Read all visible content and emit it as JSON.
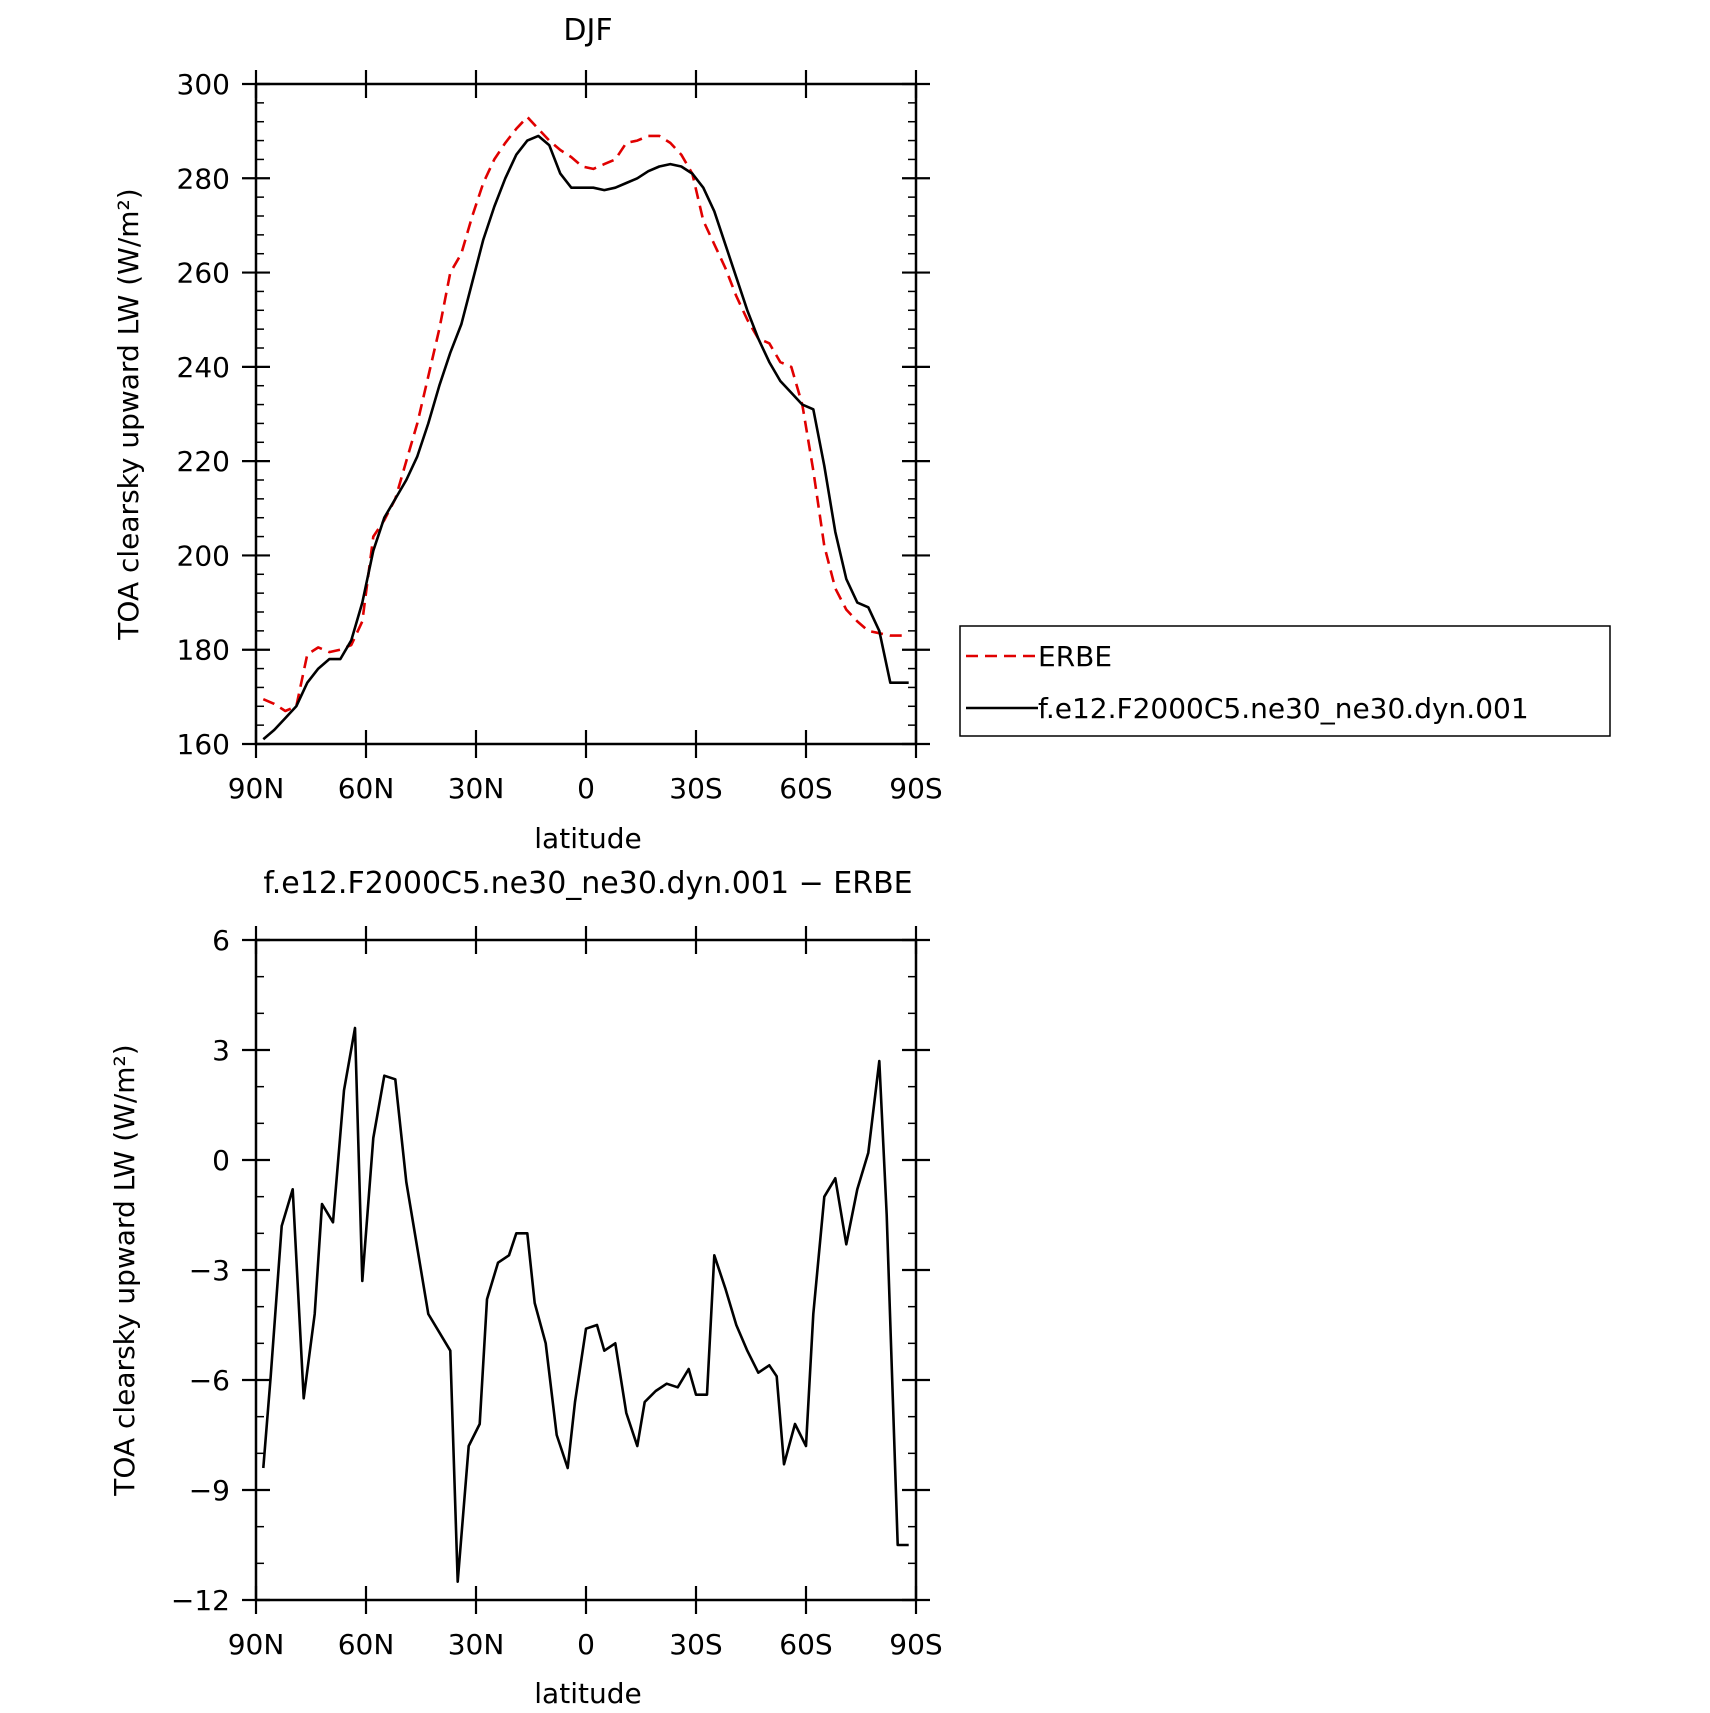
{
  "chart_data": [
    {
      "type": "line",
      "title": "DJF",
      "xlabel": "latitude",
      "ylabel": "TOA clearsky upward LW (W/m²)",
      "xlim": [
        -90,
        90
      ],
      "ylim": [
        160,
        300
      ],
      "xticks": [
        {
          "value": -90,
          "label": "90N"
        },
        {
          "value": -60,
          "label": "60N"
        },
        {
          "value": -30,
          "label": "30N"
        },
        {
          "value": 0,
          "label": "0"
        },
        {
          "value": 30,
          "label": "30S"
        },
        {
          "value": 60,
          "label": "60S"
        },
        {
          "value": 90,
          "label": "90S"
        }
      ],
      "yticks": [
        160,
        180,
        200,
        220,
        240,
        260,
        280,
        300
      ],
      "legend": {
        "placement": "right",
        "entries": [
          {
            "label": "ERBE",
            "color": "#e00000",
            "style": "dashed"
          },
          {
            "label": "f.e12.F2000C5.ne30_ne30.dyn.001",
            "color": "#000000",
            "style": "solid"
          }
        ]
      },
      "series": [
        {
          "name": "ERBE",
          "color": "#e00000",
          "dash": true,
          "x": [
            -88,
            -85,
            -82,
            -79,
            -76,
            -73,
            -70,
            -67,
            -64,
            -61,
            -58,
            -55,
            -52,
            -49,
            -46,
            -43,
            -40,
            -37,
            -34,
            -31,
            -28,
            -25,
            -22,
            -19,
            -16,
            -13,
            -10,
            -7,
            -4,
            -1,
            2,
            5,
            8,
            11,
            14,
            17,
            20,
            23,
            26,
            29,
            32,
            35,
            38,
            41,
            44,
            47,
            50,
            53,
            56,
            59,
            62,
            65,
            68,
            71,
            74,
            77,
            80,
            83,
            86,
            88
          ],
          "values": [
            169.5,
            168.5,
            167,
            168,
            179,
            180.5,
            179.5,
            180,
            181,
            186,
            204,
            207.5,
            212,
            220,
            228,
            238,
            248,
            260,
            264,
            272,
            279,
            284,
            287.5,
            290.5,
            293,
            290.5,
            288,
            286,
            284.5,
            282.5,
            282,
            283,
            284,
            287.5,
            288,
            289,
            289,
            287.5,
            285,
            281,
            271,
            266,
            261,
            255,
            250,
            246,
            245,
            241,
            240,
            232,
            218,
            202,
            193,
            188.5,
            186,
            184,
            183.5,
            183,
            183,
            183
          ]
        },
        {
          "name": "f.e12.F2000C5.ne30_ne30.dyn.001",
          "color": "#000000",
          "dash": false,
          "x": [
            -88,
            -85,
            -82,
            -79,
            -76,
            -73,
            -70,
            -67,
            -64,
            -61,
            -58,
            -55,
            -52,
            -49,
            -46,
            -43,
            -40,
            -37,
            -34,
            -31,
            -28,
            -25,
            -22,
            -19,
            -16,
            -13,
            -10,
            -7,
            -4,
            -1,
            2,
            5,
            8,
            11,
            14,
            17,
            20,
            23,
            26,
            29,
            32,
            35,
            38,
            41,
            44,
            47,
            50,
            53,
            56,
            59,
            62,
            65,
            68,
            71,
            74,
            77,
            80,
            83,
            86,
            88
          ],
          "values": [
            161,
            163,
            165.5,
            168,
            173,
            176,
            178,
            178,
            182,
            190,
            201,
            208,
            212,
            216,
            221,
            228,
            236,
            243,
            249,
            258,
            267,
            274,
            280,
            285,
            288,
            289,
            287,
            281,
            278,
            278,
            278,
            277.5,
            278,
            279,
            280,
            281.5,
            282.5,
            283,
            282.5,
            281,
            278,
            273,
            266,
            259,
            252,
            246,
            241,
            237,
            234.5,
            232,
            231,
            219,
            205,
            195,
            190,
            189,
            184,
            173,
            173,
            173
          ]
        }
      ]
    },
    {
      "type": "line",
      "title": "f.e12.F2000C5.ne30_ne30.dyn.001 − ERBE",
      "xlabel": "latitude",
      "ylabel": "TOA clearsky upward LW (W/m²)",
      "xlim": [
        -90,
        90
      ],
      "ylim": [
        -12,
        6
      ],
      "xticks": [
        {
          "value": -90,
          "label": "90N"
        },
        {
          "value": -60,
          "label": "60N"
        },
        {
          "value": -30,
          "label": "30N"
        },
        {
          "value": 0,
          "label": "0"
        },
        {
          "value": 30,
          "label": "30S"
        },
        {
          "value": 60,
          "label": "60S"
        },
        {
          "value": 90,
          "label": "90S"
        }
      ],
      "yticks": [
        {
          "value": -12,
          "label": "−12"
        },
        {
          "value": -9,
          "label": "−9"
        },
        {
          "value": -6,
          "label": "−6"
        },
        {
          "value": -3,
          "label": "−3"
        },
        {
          "value": 0,
          "label": "0"
        },
        {
          "value": 3,
          "label": "3"
        },
        {
          "value": 6,
          "label": "6"
        }
      ],
      "series": [
        {
          "color": "#000000",
          "dash": false,
          "x": [
            -88,
            -86,
            -83,
            -80,
            -77,
            -74,
            -72,
            -69,
            -66,
            -63,
            -61,
            -58,
            -55,
            -52,
            -49,
            -46,
            -43,
            -40,
            -37,
            -35,
            -32,
            -29,
            -27,
            -24,
            -21,
            -19,
            -16,
            -14,
            -11,
            -8,
            -5,
            -3,
            0,
            3,
            5,
            8,
            11,
            14,
            16,
            19,
            22,
            25,
            28,
            30,
            33,
            35,
            38,
            41,
            44,
            47,
            50,
            52,
            54,
            57,
            60,
            62,
            65,
            68,
            71,
            74,
            77,
            80,
            82,
            85,
            88
          ],
          "values": [
            -8.4,
            -5.9,
            -1.8,
            -0.8,
            -6.5,
            -4.2,
            -1.2,
            -1.7,
            1.9,
            3.6,
            -3.3,
            0.6,
            2.3,
            2.2,
            -0.6,
            -2.4,
            -4.2,
            -4.7,
            -5.2,
            -11.5,
            -7.8,
            -7.2,
            -3.8,
            -2.8,
            -2.6,
            -2.0,
            -2.0,
            -3.9,
            -5.0,
            -7.5,
            -8.4,
            -6.6,
            -4.6,
            -4.5,
            -5.2,
            -5.0,
            -6.9,
            -7.8,
            -6.6,
            -6.3,
            -6.1,
            -6.2,
            -5.7,
            -6.4,
            -6.4,
            -2.6,
            -3.5,
            -4.5,
            -5.2,
            -5.8,
            -5.6,
            -5.9,
            -8.3,
            -7.2,
            -7.8,
            -4.2,
            -1.0,
            -0.5,
            -2.3,
            -0.8,
            0.2,
            2.7,
            -1.5,
            -10.5,
            -10.5
          ]
        }
      ]
    }
  ]
}
